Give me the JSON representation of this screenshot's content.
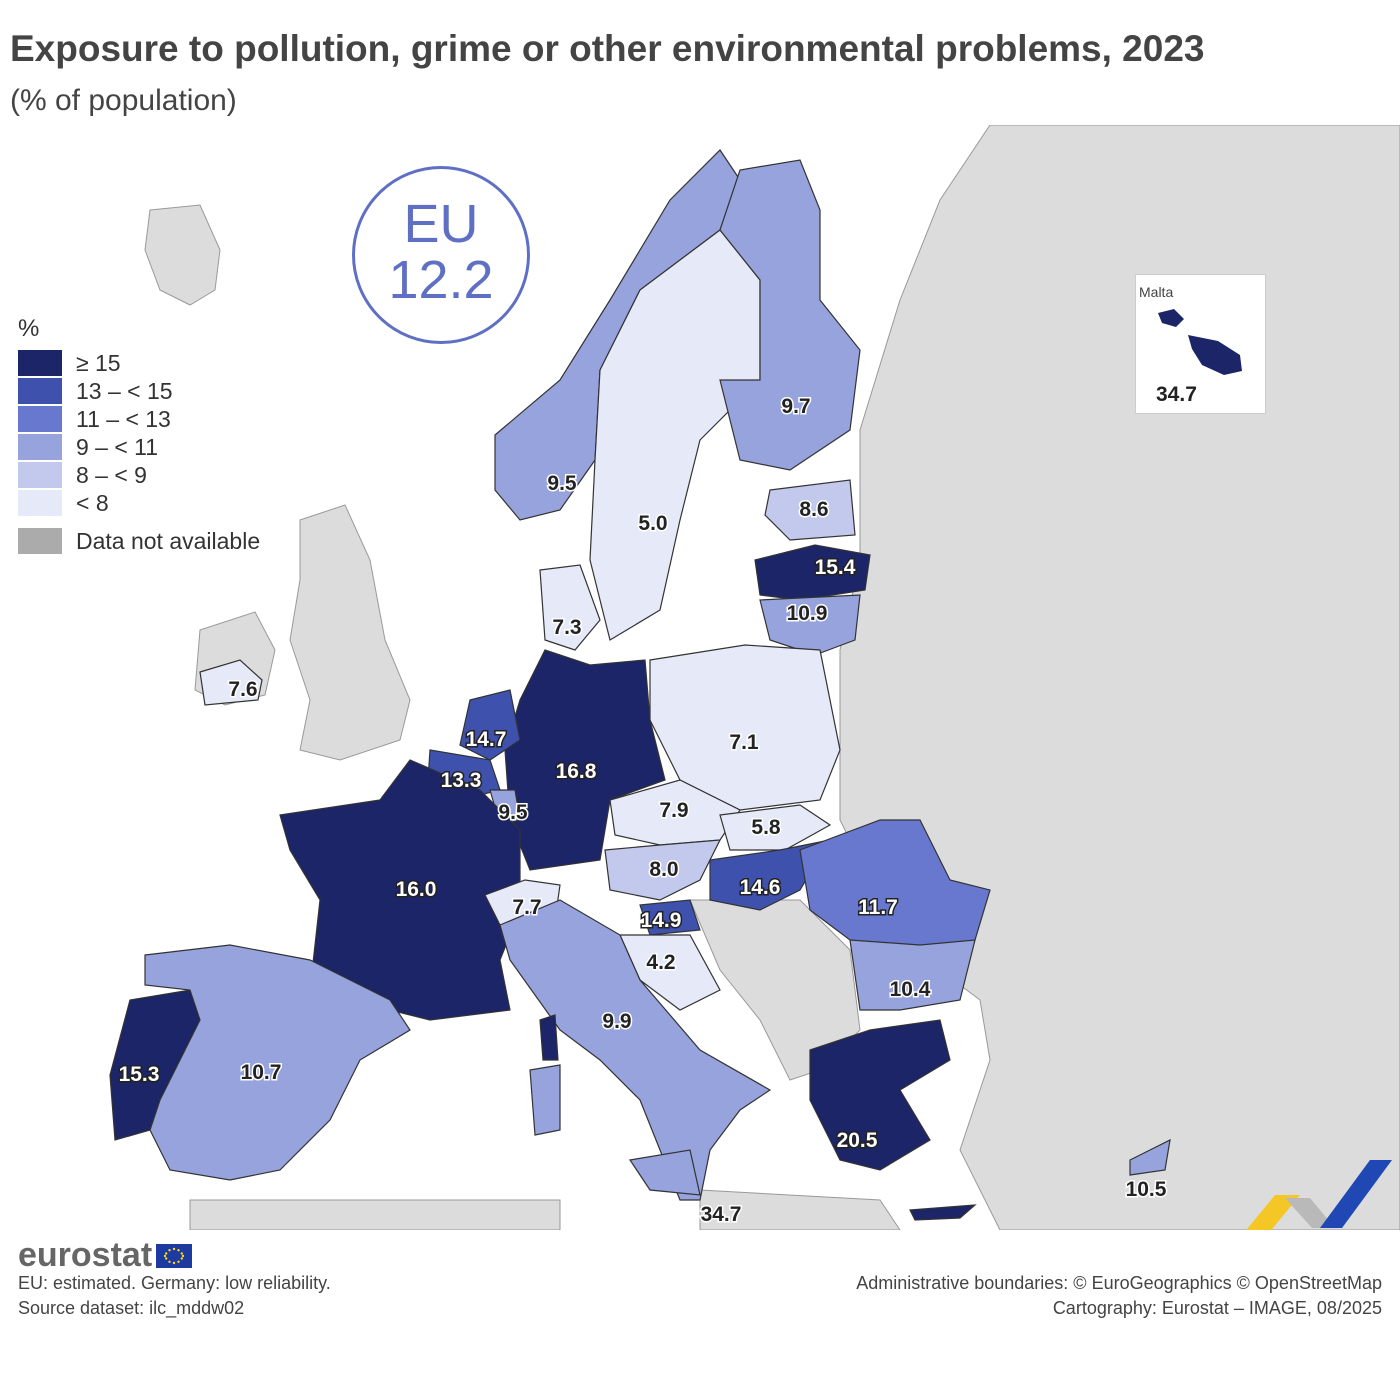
{
  "title": "Exposure to pollution, grime or other environmental problems, 2023",
  "subtitle": "(% of population)",
  "eu": {
    "label": "EU",
    "value": "12.2"
  },
  "legend": {
    "title": "%",
    "classes": [
      {
        "label": "≥ 15",
        "color": "#1b2567"
      },
      {
        "label": "13 – < 15",
        "color": "#3e52ad"
      },
      {
        "label": "11 – < 13",
        "color": "#6878cf"
      },
      {
        "label": "9 – < 11",
        "color": "#96a3dc"
      },
      {
        "label": "8 – < 9",
        "color": "#c2c9ec"
      },
      {
        "label": "< 8",
        "color": "#e6e9f7"
      }
    ],
    "na_label": "Data not available",
    "na_color": "#ababab"
  },
  "inset": {
    "title": "Malta",
    "value": "34.7"
  },
  "regions": [
    {
      "value": "7.6"
    },
    {
      "value": "9.5"
    },
    {
      "value": "5.0"
    },
    {
      "value": "9.7"
    },
    {
      "value": "8.6"
    },
    {
      "value": "15.4"
    },
    {
      "value": "10.9"
    },
    {
      "value": "7.3"
    },
    {
      "value": "7.1"
    },
    {
      "value": "14.7"
    },
    {
      "value": "13.3"
    },
    {
      "value": "9.5"
    },
    {
      "value": "16.8"
    },
    {
      "value": "16.0"
    },
    {
      "value": "7.9"
    },
    {
      "value": "5.8"
    },
    {
      "value": "8.0"
    },
    {
      "value": "14.6"
    },
    {
      "value": "11.7"
    },
    {
      "value": "7.7"
    },
    {
      "value": "14.9"
    },
    {
      "value": "4.2"
    },
    {
      "value": "10.4"
    },
    {
      "value": "9.9"
    },
    {
      "value": "15.3"
    },
    {
      "value": "10.7"
    },
    {
      "value": "20.5"
    },
    {
      "value": "34.7"
    },
    {
      "value": "10.5"
    }
  ],
  "branding": {
    "name": "eurostat"
  },
  "footnotes": {
    "note": "EU: estimated. Germany: low reliability.",
    "source": "Source dataset: ilc_mddw02",
    "boundaries": "Administrative boundaries: © EuroGeographics © OpenStreetMap",
    "cartography": "Cartography: Eurostat – IMAGE, 08/2025"
  }
}
